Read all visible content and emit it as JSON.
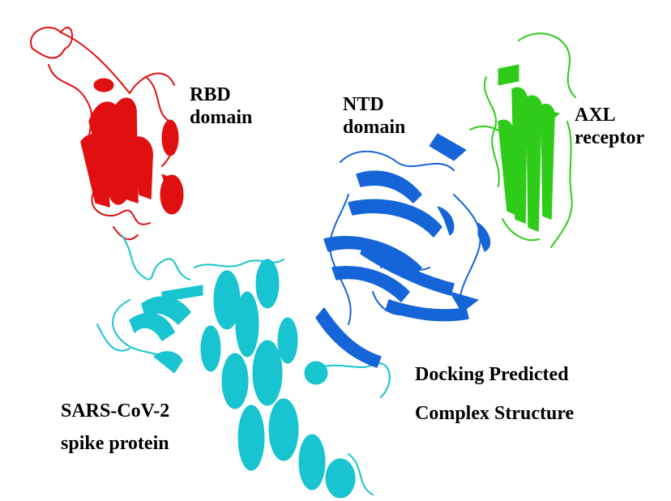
{
  "colors": {
    "rbd": "#e01010",
    "ntd": "#1565d8",
    "axl": "#2ecc18",
    "spike": "#17c4cf",
    "background": "#ffffff"
  },
  "labels": {
    "rbd": {
      "line1": "RBD",
      "line2": "domain"
    },
    "ntd": {
      "line1": "NTD",
      "line2": "domain"
    },
    "axl": {
      "line1": "AXL",
      "line2": "receptor"
    },
    "spike": {
      "line1": "SARS-CoV-2",
      "line2": "spike protein"
    },
    "complex": {
      "line1": "Docking Predicted",
      "line2": "Complex Structure"
    }
  }
}
